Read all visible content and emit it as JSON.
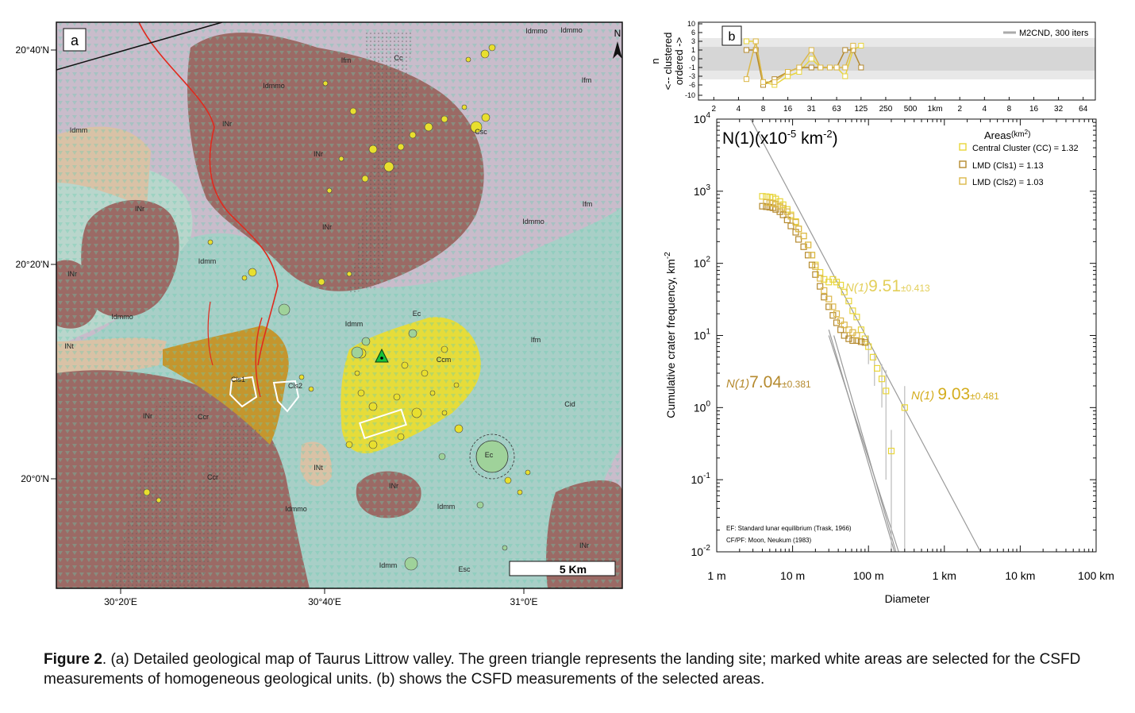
{
  "panel_a": {
    "label": "a",
    "north_label": "N",
    "scale_bar_label": "5 Km",
    "lat_labels": [
      "20°40'N",
      "20°20'N",
      "20°0'N"
    ],
    "lon_labels": [
      "30°20'E",
      "30°40'E",
      "31°0'E"
    ],
    "unit_labels": [
      "Idmmo",
      "Ifm",
      "Idmmo",
      "INr",
      "Cc",
      "Idmmo",
      "Ifm",
      "Csc",
      "Idmm",
      "INr",
      "Ifm",
      "INr",
      "INr",
      "Idmmo",
      "Idmm",
      "INr",
      "Idmmo",
      "INt",
      "Idmm",
      "Ec",
      "Ifm",
      "Ccm",
      "Cls1",
      "Cls2",
      "INr",
      "Ccr",
      "Cid",
      "Ec",
      "INt",
      "Ccr",
      "INr",
      "Idmm",
      "Idmmo",
      "INr",
      "Esc",
      "Idmm"
    ],
    "colors": {
      "Ifm": "#c9bccb",
      "INr": "#9b6a65",
      "Idmm": "#a8cfc7",
      "INt": "#d9c2a6",
      "Ccm": "#e6dc3a",
      "Cls": "#c4962e",
      "crater_fill": "#e8df2e",
      "ec_fill": "#9fd29a",
      "fault": "#e02a1e",
      "landing": "#17c23a",
      "dots": "#6fd0b3"
    }
  },
  "panel_b": {
    "label": "b",
    "top_ylabel_line1": "n",
    "top_ylabel_sub": "σ",
    "top_ylabel_line2": "<-- clustered",
    "top_ylabel_line3": "ordered ->",
    "top_yticks": [
      "10",
      "6",
      "3",
      "1",
      "0",
      "-1",
      "-3",
      "-6",
      "-10"
    ],
    "top_xticks": [
      "2",
      "4",
      "8",
      "16",
      "31",
      "63",
      "125",
      "250",
      "500",
      "1km",
      "2",
      "4",
      "8",
      "16",
      "32",
      "64"
    ],
    "top_legend": "M2CND, 300 iters",
    "main_title": "N(1)",
    "main_title_units": "(x10",
    "main_title_exp": "-5",
    "main_title_units2": " km",
    "main_title_exp2": "-2",
    "main_title_close": ")",
    "legend_title": "Areas",
    "legend_units": "(km",
    "legend_units_exp": "2",
    "legend_units_close": ")",
    "legend_items": [
      "Central Cluster (CC) = 1.32",
      "LMD (Cls1) = 1.13",
      "LMD (Cls2) = 1.03"
    ],
    "ylabel": "Cumulative crater frequency, km",
    "ylabel_exp": "-2",
    "xlabel": "Diameter",
    "xticks": [
      "1 m",
      "10 m",
      "100 m",
      "1 km",
      "10 km",
      "100 km"
    ],
    "ytick_base": [
      "10",
      "10",
      "10",
      "10",
      "10",
      "10",
      "10"
    ],
    "ytick_exp": [
      "4",
      "3",
      "2",
      "1",
      "0",
      "-1",
      "-2"
    ],
    "annotations": [
      {
        "prefix": "N(1)",
        "value": "9.51",
        "err": "±0.413",
        "color": "#e3cf5a"
      },
      {
        "prefix": "N(1)",
        "value": "7.04",
        "err": "±0.381",
        "color": "#b58a2e"
      },
      {
        "prefix": "N(1) ",
        "value": "9.03",
        "err": "±0.481",
        "color": "#d4ad1e"
      }
    ],
    "footnote1": "EF: Standard lunar equilibrium (Trask, 1966)",
    "footnote2": "CF/PF: Moon, Neukum (1983)",
    "colors": {
      "cc": "#e8d53a",
      "cls1": "#b58a2e",
      "cls2": "#dcb84a"
    }
  },
  "chart_data": {
    "type": "scatter",
    "xlabel": "Diameter",
    "ylabel": "Cumulative crater frequency, km-2",
    "xscale": "log",
    "yscale": "log",
    "xlim": [
      0.001,
      100
    ],
    "ylim": [
      0.01,
      10000
    ],
    "grid": false,
    "legend_position": "top-right",
    "series": [
      {
        "name": "Central Cluster (CC) = 1.32",
        "x": [
          0.004,
          0.0045,
          0.005,
          0.0055,
          0.006,
          0.0068,
          0.0075,
          0.0085,
          0.0095,
          0.011,
          0.012,
          0.014,
          0.016,
          0.018,
          0.02,
          0.023,
          0.026,
          0.03,
          0.034,
          0.038,
          0.043,
          0.048,
          0.055,
          0.062,
          0.07,
          0.08,
          0.09,
          0.1,
          0.115,
          0.13,
          0.15,
          0.17,
          0.2,
          0.3
        ],
        "y": [
          850,
          840,
          830,
          820,
          780,
          720,
          650,
          560,
          470,
          380,
          300,
          240,
          180,
          130,
          95,
          75,
          60,
          55,
          60,
          55,
          50,
          40,
          30,
          22,
          18,
          12,
          9,
          7,
          5,
          3.5,
          2.5,
          1.7,
          0.25,
          1.0
        ]
      },
      {
        "name": "LMD (Cls1) = 1.13",
        "x": [
          0.004,
          0.0045,
          0.005,
          0.0055,
          0.006,
          0.0068,
          0.0075,
          0.0085,
          0.0095,
          0.011,
          0.012,
          0.014,
          0.016,
          0.018,
          0.02,
          0.023,
          0.026,
          0.03,
          0.034,
          0.038,
          0.043,
          0.048,
          0.055,
          0.062,
          0.07,
          0.08,
          0.09
        ],
        "y": [
          620,
          610,
          600,
          590,
          560,
          520,
          470,
          400,
          330,
          270,
          215,
          170,
          130,
          95,
          70,
          48,
          34,
          25,
          19,
          15,
          12,
          10,
          9,
          8.5,
          8.5,
          8.2,
          8.0
        ]
      },
      {
        "name": "LMD (Cls2) = 1.03",
        "x": [
          0.0045,
          0.005,
          0.0055,
          0.006,
          0.0068,
          0.0075,
          0.0085,
          0.0095,
          0.011,
          0.012,
          0.014,
          0.016,
          0.018,
          0.02,
          0.023,
          0.026,
          0.03,
          0.034,
          0.038,
          0.043,
          0.048,
          0.055,
          0.062,
          0.07
        ],
        "y": [
          700,
          690,
          680,
          660,
          620,
          580,
          520,
          450,
          370,
          300,
          240,
          180,
          130,
          90,
          62,
          42,
          32,
          25,
          20,
          16,
          14,
          12,
          11,
          10
        ]
      }
    ],
    "reference_lines": [
      "EF: Standard lunar equilibrium (Trask, 1966)",
      "CF/PF: Moon, Neukum (1983)"
    ],
    "inset": {
      "type": "line",
      "ylabel": "nσ",
      "xticks": [
        "2",
        "4",
        "8",
        "16",
        "31",
        "63",
        "125",
        "250",
        "500",
        "1km",
        "2",
        "4",
        "8",
        "16",
        "32",
        "64"
      ],
      "yticks": [
        "10",
        "6",
        "3",
        "1",
        "0",
        "-1",
        "-3",
        "-6",
        "-10"
      ],
      "legend": "M2CND, 300 iters",
      "series": [
        {
          "name": "Central Cluster (CC)",
          "x": [
            5,
            6.5,
            8,
            11,
            16,
            22,
            31,
            40,
            52,
            63,
            80,
            100,
            125
          ],
          "y": [
            3,
            3,
            -5,
            -6,
            -3,
            -2,
            0,
            -1,
            -1,
            -1,
            -3,
            1,
            2
          ]
        },
        {
          "name": "LMD (Cls1)",
          "x": [
            5,
            6.5,
            8,
            11,
            16,
            22,
            31,
            40,
            52,
            63,
            80,
            100,
            125
          ],
          "y": [
            1,
            1,
            -6,
            -4,
            -2,
            -1,
            -1,
            -1,
            -1,
            -1,
            1,
            1,
            -1
          ]
        },
        {
          "name": "LMD (Cls2)",
          "x": [
            5,
            6.5,
            8,
            11,
            16,
            22,
            31,
            40,
            52,
            63,
            80,
            100
          ],
          "y": [
            -4,
            3,
            -5,
            -5,
            -2,
            -1,
            1,
            -1,
            -1,
            -1,
            -1,
            2
          ]
        }
      ]
    }
  },
  "caption": {
    "label": "Figure 2",
    "text": ". (a) Detailed geological map of Taurus Littrow valley. The green triangle represents the landing site; marked white areas are selected for the CSFD measurements of homogeneous geological units. (b) shows the CSFD measurements of the selected areas."
  }
}
